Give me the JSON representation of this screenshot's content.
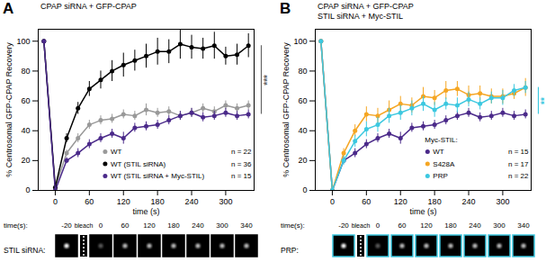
{
  "chart_data": [
    {
      "type": "line",
      "panel": "A",
      "title": "CPAP siRNA + GFP-CPAP",
      "x_label": "time (s)",
      "y_label": "% Centrosomal GFP-CPAP Recovery",
      "xlim": [
        -30,
        350
      ],
      "xticks": [
        0,
        60,
        120,
        180,
        240,
        300
      ],
      "ylim": [
        0,
        108
      ],
      "yticks": [
        0,
        20,
        40,
        60,
        80,
        100
      ],
      "marker": "circle",
      "x": [
        -20,
        0,
        20,
        40,
        60,
        80,
        100,
        120,
        140,
        160,
        180,
        200,
        220,
        240,
        260,
        280,
        300,
        320,
        340
      ],
      "series": [
        {
          "name": "WT",
          "n_label": "n = 22",
          "color": "#999999",
          "values": [
            100,
            2,
            25,
            35,
            44,
            47,
            48,
            51,
            50,
            54,
            52,
            53,
            50,
            52,
            55,
            53,
            57,
            55,
            57
          ],
          "errors": [
            0,
            1,
            2,
            3,
            3,
            3,
            3,
            3,
            3,
            4,
            3,
            3,
            3,
            3,
            3,
            3,
            3,
            3,
            3
          ]
        },
        {
          "name": "WT (STIL siRNA)",
          "n_label": "n = 36",
          "color": "#000000",
          "values": [
            100,
            2,
            35,
            55,
            68,
            74,
            80,
            84,
            87,
            90,
            93,
            93,
            98,
            96,
            95,
            97,
            90,
            91,
            97
          ],
          "errors": [
            0,
            2,
            3,
            4,
            5,
            6,
            7,
            8,
            7,
            8,
            9,
            8,
            10,
            8,
            7,
            9,
            6,
            7,
            8
          ]
        },
        {
          "name": "WT (STIL siRNA + Myc-STIL)",
          "n_label": "n = 15",
          "color": "#4b2a8a",
          "values": [
            100,
            0,
            20,
            25,
            31,
            35,
            38,
            35,
            42,
            43,
            44,
            47,
            50,
            52,
            49,
            50,
            52,
            50,
            51
          ],
          "errors": [
            0,
            1,
            2,
            3,
            3,
            3,
            3,
            4,
            3,
            3,
            3,
            3,
            3,
            3,
            3,
            3,
            3,
            3,
            3
          ]
        }
      ],
      "significance": {
        "label": "***",
        "color": "#666666",
        "series": [
          "WT (STIL siRNA)",
          "WT (STIL siRNA + Myc-STIL)"
        ]
      },
      "image_strip": {
        "time_label": "time(s):",
        "bleach_label": "bleach",
        "times": [
          -20,
          0,
          60,
          120,
          180,
          240,
          300,
          340
        ],
        "row_label": "STIL siRNA:",
        "border_color": "#000000"
      }
    },
    {
      "type": "line",
      "panel": "B",
      "title": "CPAP siRNA + GFP-CPAP",
      "subtitle": "STIL siRNA + Myc-STIL",
      "x_label": "time (s)",
      "y_label": "% Centrosomal GFP-CPAP Recovery",
      "xlim": [
        -30,
        350
      ],
      "xticks": [
        0,
        60,
        120,
        180,
        240,
        300
      ],
      "ylim": [
        0,
        108
      ],
      "yticks": [
        0,
        20,
        40,
        60,
        80,
        100
      ],
      "marker": "circle",
      "legend_title": "Myc-STIL:",
      "x": [
        -20,
        0,
        20,
        40,
        60,
        80,
        100,
        120,
        140,
        160,
        180,
        200,
        220,
        240,
        260,
        280,
        300,
        320,
        340
      ],
      "series": [
        {
          "name": "WT",
          "n_label": "n = 15",
          "color": "#4b2a8a",
          "values": [
            100,
            0,
            20,
            25,
            31,
            35,
            38,
            35,
            42,
            43,
            44,
            47,
            50,
            52,
            49,
            50,
            52,
            50,
            51
          ],
          "errors": [
            0,
            1,
            2,
            3,
            3,
            3,
            3,
            4,
            3,
            3,
            3,
            3,
            3,
            3,
            3,
            3,
            3,
            3,
            3
          ]
        },
        {
          "name": "S428A",
          "n_label": "n = 17",
          "color": "#f5a623",
          "values": [
            100,
            0,
            25,
            40,
            51,
            50,
            54,
            58,
            57,
            63,
            62,
            67,
            68,
            64,
            65,
            63,
            63,
            65,
            69
          ],
          "errors": [
            0,
            1,
            3,
            4,
            5,
            5,
            6,
            5,
            5,
            6,
            5,
            6,
            5,
            6,
            5,
            5,
            5,
            4,
            6
          ]
        },
        {
          "name": "PRP",
          "n_label": "n = 22",
          "color": "#3cc8e0",
          "values": [
            100,
            0,
            20,
            33,
            41,
            44,
            50,
            52,
            55,
            58,
            54,
            58,
            57,
            61,
            58,
            62,
            62,
            67,
            69
          ],
          "errors": [
            0,
            1,
            3,
            4,
            5,
            5,
            5,
            5,
            5,
            5,
            5,
            4,
            5,
            5,
            4,
            4,
            5,
            4,
            4
          ]
        }
      ],
      "significance": {
        "label": "**",
        "color": "#3cc8e0",
        "series": [
          "PRP",
          "WT"
        ]
      },
      "image_strip": {
        "time_label": "time(s):",
        "bleach_label": "bleach",
        "times": [
          -20,
          0,
          60,
          120,
          180,
          240,
          300,
          340
        ],
        "row_label": "PRP:",
        "border_color": "#3cc8e0"
      }
    }
  ]
}
